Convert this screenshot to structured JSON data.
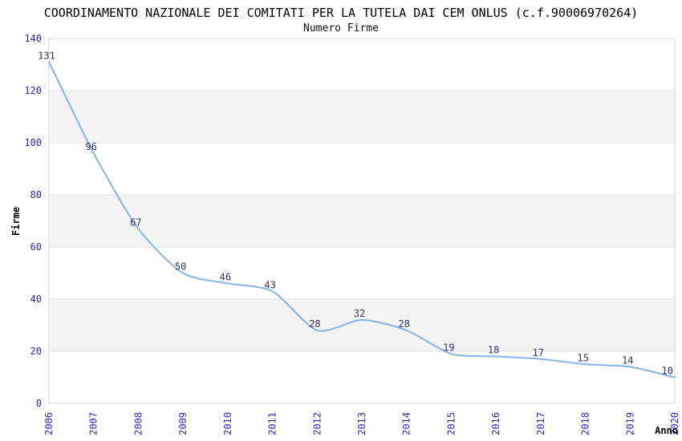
{
  "chart_data": {
    "type": "line",
    "title": "COORDINAMENTO NAZIONALE DEI COMITATI PER LA TUTELA DAI CEM ONLUS (c.f.90006970264)",
    "subtitle": "Numero Firme",
    "xlabel": "Anno",
    "ylabel": "Firme",
    "x": [
      "2006",
      "2007",
      "2008",
      "2009",
      "2010",
      "2011",
      "2012",
      "2013",
      "2014",
      "2015",
      "2016",
      "2017",
      "2018",
      "2019",
      "2020"
    ],
    "values": [
      131,
      96,
      67,
      50,
      46,
      43,
      28,
      32,
      28,
      19,
      18,
      17,
      15,
      14,
      10
    ],
    "ylim": [
      0,
      140
    ],
    "ytick_interval": 20,
    "grid": "horizontal-bands-alternating",
    "legend": "none",
    "data_labels_shown": true,
    "x_tick_rotation": -90,
    "colors": {
      "line": "#85b2ee",
      "tick_labels": "#2a2acf",
      "data_labels": "#333366",
      "band_fill": "#f3f3f3",
      "band_alt_fill": "#ffffff",
      "grid_line": "#e2e2e2",
      "plot_border": "#d4d4d4",
      "title_text": "#000000",
      "background": "#ffffff"
    }
  }
}
